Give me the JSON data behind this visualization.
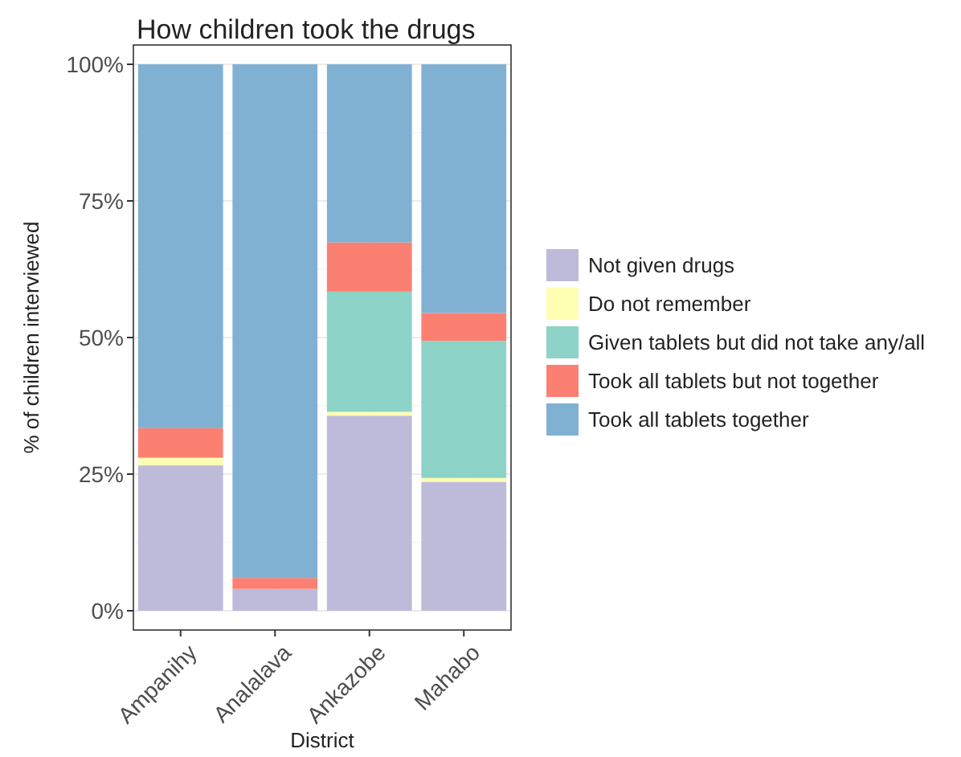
{
  "chart_data": {
    "type": "bar",
    "title": "How children took the drugs",
    "xlabel": "District",
    "ylabel": "% of children interviewed",
    "categories": [
      "Ampanihy",
      "Analalava",
      "Ankazobe",
      "Mahabo"
    ],
    "stacked": true,
    "ylim": [
      0,
      100
    ],
    "yticks": [
      {
        "value": 0,
        "label": "0%"
      },
      {
        "value": 25,
        "label": "25%"
      },
      {
        "value": 50,
        "label": "50%"
      },
      {
        "value": 75,
        "label": "75%"
      },
      {
        "value": 100,
        "label": "100%"
      }
    ],
    "grid": true,
    "legend": "right",
    "series": [
      {
        "name": "Not given drugs",
        "color": "#bebada",
        "values": [
          26.6,
          4.0,
          35.7,
          23.6
        ]
      },
      {
        "name": "Do not remember",
        "color": "#ffffb3",
        "values": [
          1.4,
          0,
          0.7,
          0.7
        ]
      },
      {
        "name": "Given tablets but did not take any/all",
        "color": "#8dd3c7",
        "values": [
          0,
          0,
          22.0,
          25.1
        ]
      },
      {
        "name": "Took all tablets but not together",
        "color": "#fb8072",
        "values": [
          5.4,
          2.0,
          9.0,
          5.1
        ]
      },
      {
        "name": "Took all tablets together",
        "color": "#80b1d3",
        "values": [
          66.6,
          94.0,
          32.6,
          45.5
        ]
      }
    ]
  }
}
